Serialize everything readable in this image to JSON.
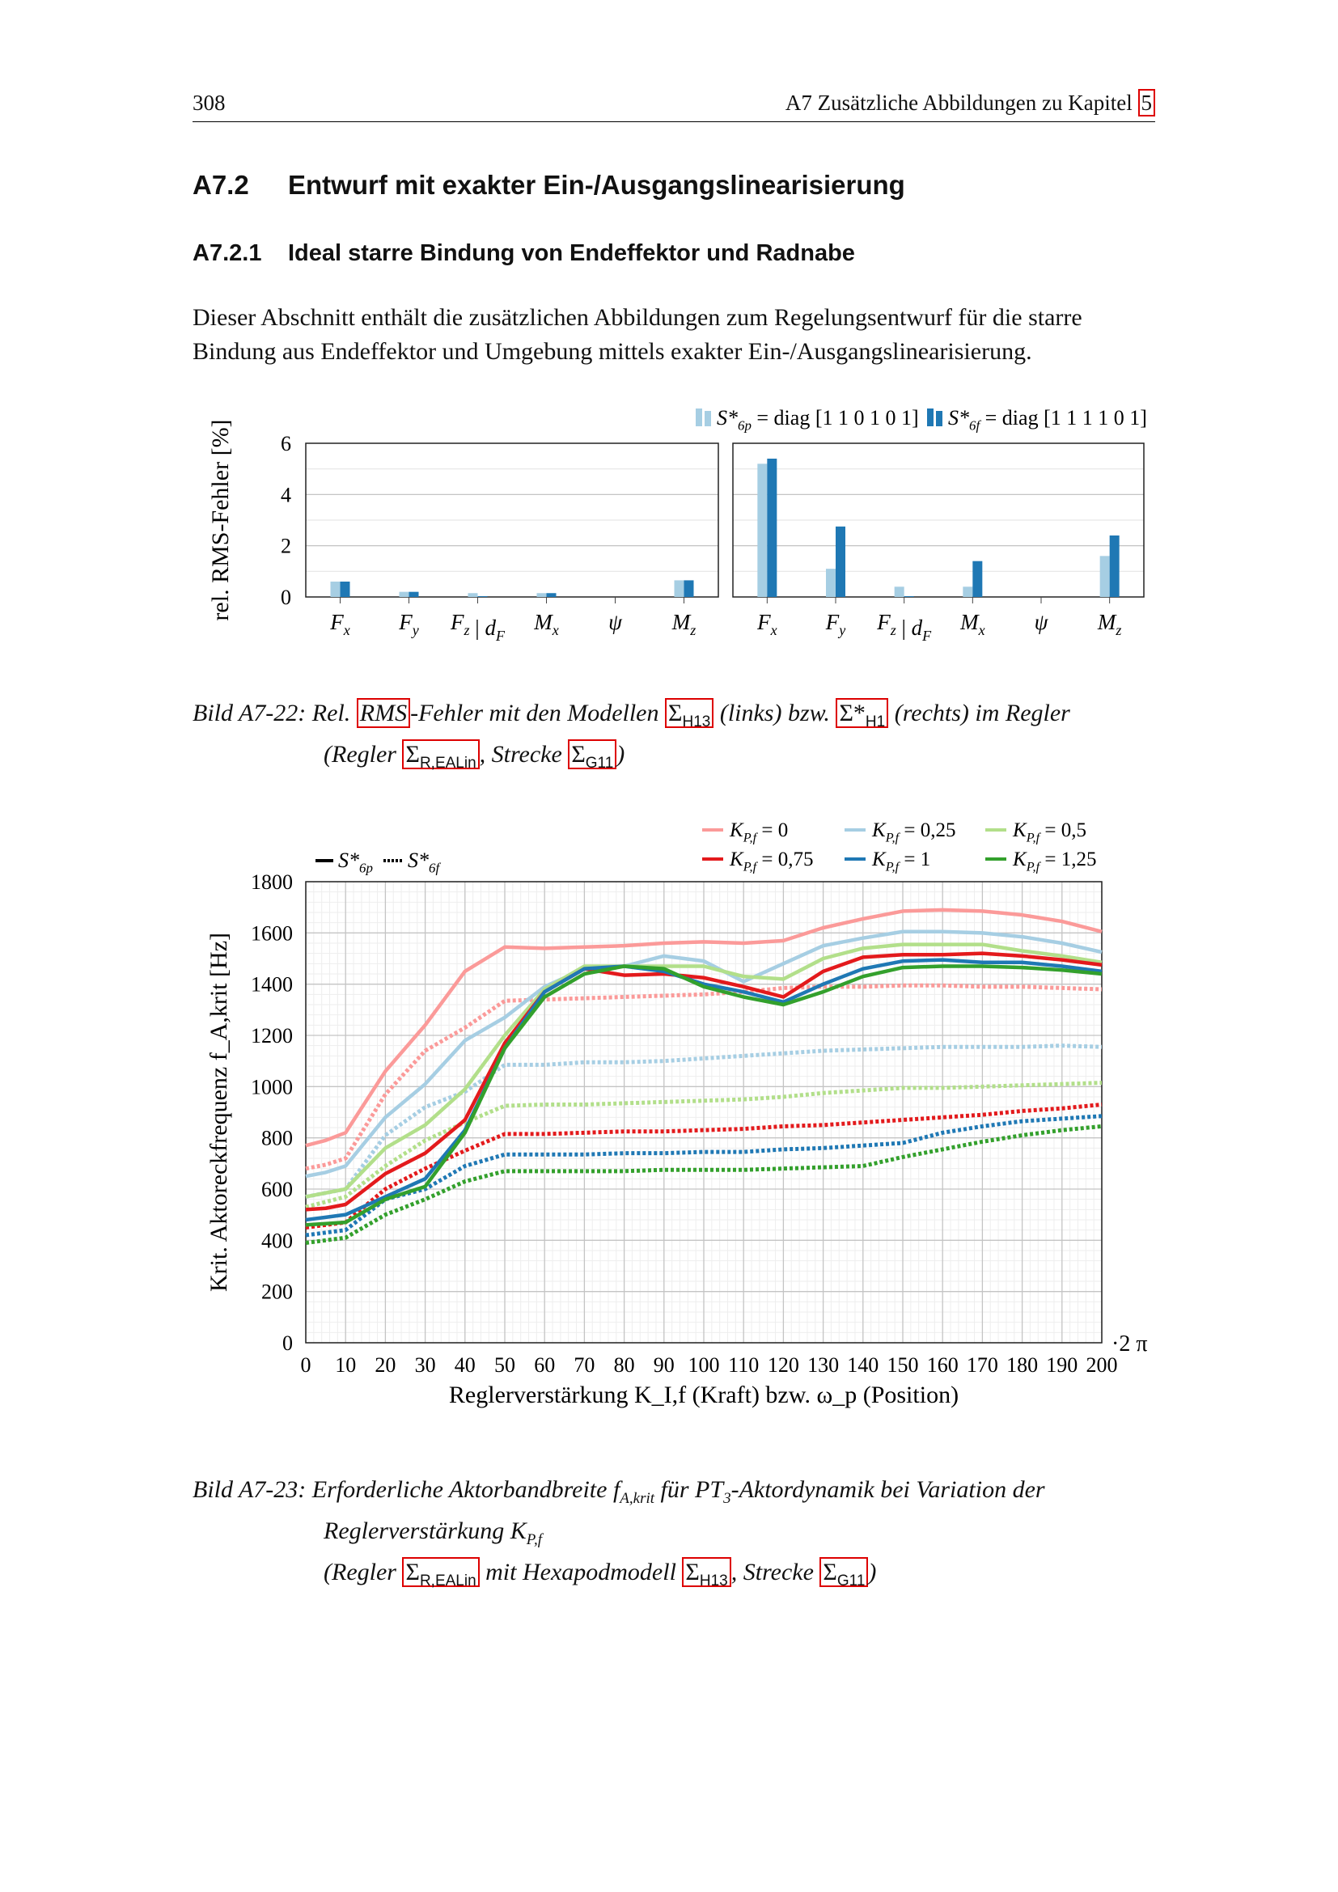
{
  "header": {
    "page_number": "308",
    "running_title": "A7 Zusätzliche Abbildungen zu Kapitel",
    "chapter_ref": "5"
  },
  "section": {
    "number": "A7.2",
    "title": "Entwurf mit exakter Ein-/Ausgangslinearisierung"
  },
  "subsection": {
    "number": "A7.2.1",
    "title": "Ideal starre Bindung von Endeffektor und Radnabe"
  },
  "paragraph": "Dieser Abschnitt enthält die zusätzlichen Abbildungen zum Regelungsentwurf für die starre Bindung aus Endeffektor und Umgebung mittels exakter Ein-/Ausgangslinearisierung.",
  "figure1": {
    "caption_label": "Bild A7-22",
    "caption_parts": [
      "Rel.",
      "RMS",
      "-Fehler mit den Modellen",
      "Σ",
      "H13",
      "(links) bzw.",
      "Σ*",
      "H1",
      "(rechts) im Regler",
      "(Regler",
      "Σ",
      "R,EALin",
      ", Strecke",
      "Σ",
      "G11",
      ")"
    ]
  },
  "figure2": {
    "caption_label": "Bild A7-23",
    "caption_line1": "Erforderliche Aktorbandbreite",
    "caption_sym": "f",
    "caption_sym_sub": "A,krit",
    "caption_line1b": "für PT",
    "caption_pt_sub": "3",
    "caption_line1c": "-Aktordynamik bei Variation der",
    "caption_line2": "Reglerverstärkung K",
    "caption_line2_sub": "P,f",
    "caption_line3": [
      "(Regler",
      "Σ",
      "R,EALin",
      "mit Hexapodmodell",
      "Σ",
      "H13",
      ", Strecke",
      "Σ",
      "G11",
      ")"
    ]
  },
  "chart_data": [
    {
      "type": "bar",
      "ylabel": "rel. RMS-Fehler [%]",
      "ylim": [
        0,
        6
      ],
      "yticks": [
        0,
        2,
        4,
        6
      ],
      "categories": [
        "F_x",
        "F_y",
        "F_z | d_F",
        "M_x",
        "ψ",
        "M_z"
      ],
      "legend": [
        {
          "sym": "S*",
          "sub": "6p",
          "text": "= diag [1 1 0 1 0 1]",
          "color": "#a6cee3"
        },
        {
          "sym": "S*",
          "sub": "6f",
          "text": "= diag [1 1 1 1 0 1]",
          "color": "#1f78b4"
        }
      ],
      "legend_position": "top-right",
      "panels": [
        {
          "name": "links",
          "series": [
            {
              "name": "S6p",
              "values": [
                0.6,
                0.2,
                0.15,
                0.15,
                0,
                0.65
              ]
            },
            {
              "name": "S6f",
              "values": [
                0.6,
                0.2,
                0.03,
                0.15,
                0,
                0.65
              ]
            }
          ]
        },
        {
          "name": "rechts",
          "series": [
            {
              "name": "S6p",
              "values": [
                5.2,
                1.1,
                0.4,
                0.4,
                0,
                1.6
              ]
            },
            {
              "name": "S6f",
              "values": [
                5.4,
                2.75,
                0.03,
                1.4,
                0,
                2.4
              ]
            }
          ]
        }
      ]
    },
    {
      "type": "line",
      "ylabel": "Krit. Aktoreckfrequenz f_A,krit [Hz]",
      "xlabel": "Reglerverstärkung K_I,f (Kraft) bzw. ω_p (Position)",
      "x_unit_suffix": "·2 π",
      "xlim": [
        0,
        200
      ],
      "ylim": [
        0,
        1800
      ],
      "xticks": [
        0,
        10,
        20,
        30,
        40,
        50,
        60,
        70,
        80,
        90,
        100,
        110,
        120,
        130,
        140,
        150,
        160,
        170,
        180,
        190,
        200
      ],
      "yticks": [
        0,
        200,
        400,
        600,
        800,
        1000,
        1200,
        1400,
        1600,
        1800
      ],
      "grid": true,
      "style_legend": [
        {
          "label": "S*",
          "sub": "6p",
          "style": "solid"
        },
        {
          "label": "S*",
          "sub": "6f",
          "style": "dotted"
        }
      ],
      "x": [
        0,
        5,
        10,
        20,
        30,
        40,
        50,
        60,
        70,
        80,
        90,
        100,
        110,
        120,
        130,
        140,
        150,
        160,
        170,
        180,
        190,
        200
      ],
      "series": [
        {
          "name": "K_P,f = 0",
          "k": "= 0",
          "color": "#fb9a99",
          "solid": [
            770,
            790,
            820,
            1060,
            1240,
            1450,
            1545,
            1540,
            1545,
            1550,
            1560,
            1565,
            1560,
            1570,
            1620,
            1655,
            1685,
            1690,
            1685,
            1670,
            1645,
            1605
          ],
          "dotted": [
            680,
            695,
            720,
            970,
            1140,
            1230,
            1335,
            1340,
            1345,
            1350,
            1355,
            1360,
            1370,
            1385,
            1390,
            1390,
            1395,
            1395,
            1390,
            1390,
            1385,
            1380
          ]
        },
        {
          "name": "K_P,f = 0,25",
          "k": "= 0,25",
          "color": "#a6cee3",
          "solid": [
            650,
            665,
            690,
            880,
            1010,
            1180,
            1270,
            1390,
            1460,
            1470,
            1510,
            1490,
            1410,
            1480,
            1550,
            1580,
            1605,
            1605,
            1600,
            1585,
            1560,
            1525
          ],
          "dotted": [
            570,
            585,
            600,
            810,
            920,
            980,
            1085,
            1085,
            1095,
            1095,
            1100,
            1110,
            1120,
            1130,
            1140,
            1145,
            1150,
            1155,
            1155,
            1155,
            1160,
            1155
          ]
        },
        {
          "name": "K_P,f = 0,5",
          "k": "= 0,5",
          "color": "#b2df8a",
          "solid": [
            570,
            585,
            600,
            760,
            850,
            990,
            1200,
            1380,
            1470,
            1470,
            1470,
            1470,
            1430,
            1420,
            1500,
            1540,
            1555,
            1555,
            1555,
            1530,
            1510,
            1485
          ],
          "dotted": [
            530,
            550,
            570,
            690,
            790,
            860,
            925,
            930,
            930,
            935,
            940,
            945,
            950,
            960,
            975,
            985,
            995,
            995,
            1000,
            1005,
            1010,
            1015
          ]
        },
        {
          "name": "K_P,f = 0,75",
          "k": "= 0,75",
          "color": "#e31a1c",
          "solid": [
            520,
            525,
            540,
            660,
            740,
            870,
            1170,
            1370,
            1460,
            1435,
            1440,
            1425,
            1390,
            1350,
            1450,
            1505,
            1515,
            1515,
            1520,
            1510,
            1495,
            1475
          ],
          "dotted": [
            450,
            460,
            470,
            600,
            680,
            750,
            815,
            815,
            820,
            825,
            825,
            830,
            835,
            845,
            850,
            860,
            870,
            880,
            890,
            905,
            915,
            930
          ]
        },
        {
          "name": "K_P,f = 1",
          "k": "= 1",
          "color": "#1f78b4",
          "solid": [
            480,
            490,
            500,
            570,
            640,
            830,
            1150,
            1370,
            1460,
            1470,
            1450,
            1400,
            1370,
            1330,
            1400,
            1460,
            1490,
            1495,
            1485,
            1485,
            1470,
            1450
          ],
          "dotted": [
            420,
            430,
            440,
            560,
            600,
            690,
            735,
            735,
            735,
            740,
            740,
            745,
            745,
            755,
            760,
            770,
            780,
            820,
            845,
            865,
            875,
            885
          ]
        },
        {
          "name": "K_P,f = 1,25",
          "k": "= 1,25",
          "color": "#33a02c",
          "solid": [
            460,
            465,
            470,
            560,
            610,
            820,
            1150,
            1350,
            1440,
            1470,
            1460,
            1390,
            1350,
            1320,
            1370,
            1430,
            1465,
            1470,
            1470,
            1465,
            1455,
            1440
          ],
          "dotted": [
            390,
            400,
            410,
            500,
            560,
            630,
            670,
            670,
            670,
            670,
            675,
            675,
            675,
            680,
            685,
            690,
            725,
            755,
            785,
            810,
            830,
            845
          ]
        }
      ],
      "legend_position": "top-right"
    }
  ]
}
